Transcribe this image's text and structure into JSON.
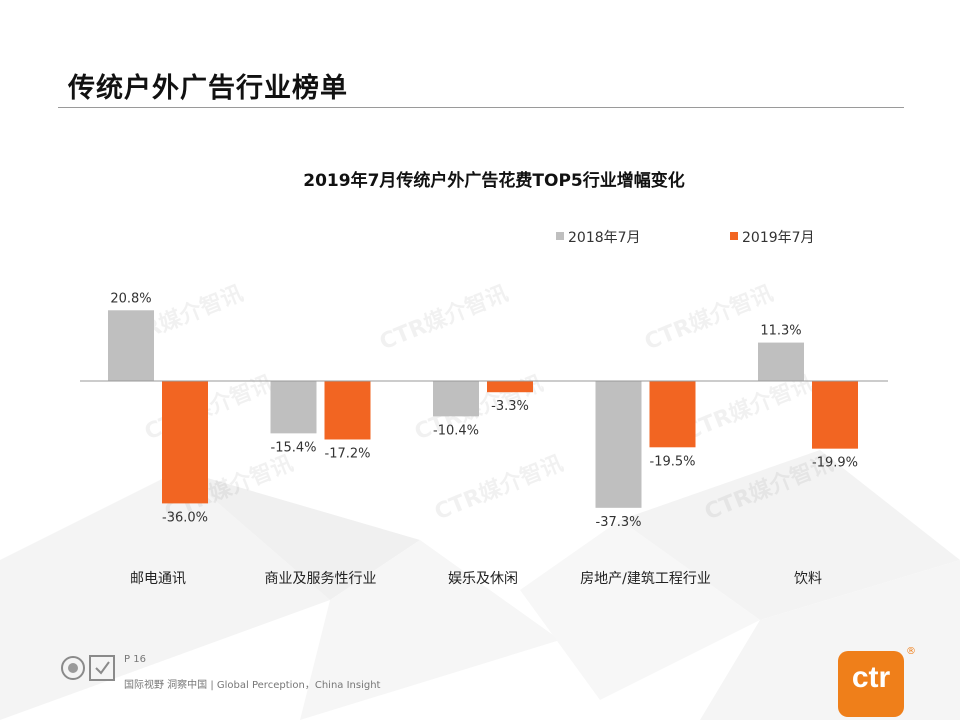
{
  "page": {
    "title": "传统户外广告行业榜单",
    "page_number": "P 16",
    "slogan": "国际视野 洞察中国 | Global Perception，China Insight",
    "watermark": "CTR媒介智讯",
    "logo_text": "ctr",
    "logo_mark": "®"
  },
  "colors": {
    "series_2018": "#bfbfbf",
    "series_2019": "#f26522",
    "accent": "#ef7f1a"
  },
  "chart_data": {
    "type": "bar",
    "title": "2019年7月传统户外广告花费TOP5行业增幅变化",
    "categories": [
      "邮电通讯",
      "商业及服务性行业",
      "娱乐及休闲",
      "房地产/建筑工程行业",
      "饮料"
    ],
    "series": [
      {
        "name": "2018年7月",
        "values": [
          20.8,
          -15.4,
          -10.4,
          -37.3,
          11.3
        ],
        "labels": [
          "20.8%",
          "-15.4%",
          "-10.4%",
          "-37.3%",
          "11.3%"
        ]
      },
      {
        "name": "2019年7月",
        "values": [
          -36.0,
          -17.2,
          -3.3,
          -19.5,
          -19.9
        ],
        "labels": [
          "-36.0%",
          "-17.2%",
          "-3.3%",
          "-19.5%",
          "-19.9%"
        ]
      }
    ],
    "ylim": [
      -40,
      25
    ],
    "xlabel": "",
    "ylabel": "",
    "unit": "%",
    "legend_position": "top-right",
    "grid": false
  }
}
